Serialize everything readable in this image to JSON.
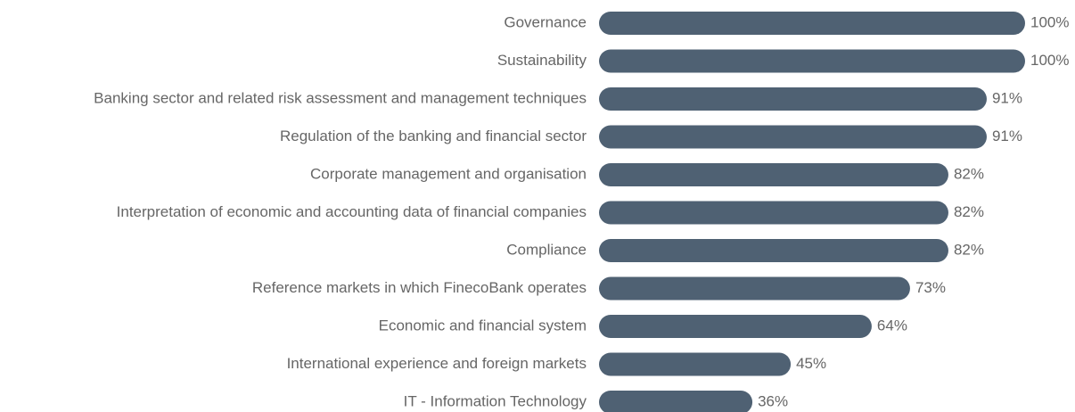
{
  "chart_data": {
    "type": "bar",
    "orientation": "horizontal",
    "categories": [
      "Governance",
      "Sustainability",
      "Banking sector and related risk assessment and management techniques",
      "Regulation of the banking and financial sector",
      "Corporate management and organisation",
      "Interpretation of economic and accounting data of financial companies",
      "Compliance",
      "Reference markets in which FinecoBank operates",
      "Economic and financial system",
      "International experience and foreign markets",
      "IT - Information Technology"
    ],
    "values": [
      100,
      100,
      91,
      91,
      82,
      82,
      82,
      73,
      64,
      45,
      36
    ],
    "value_labels": [
      "100%",
      "100%",
      "91%",
      "91%",
      "82%",
      "82%",
      "82%",
      "73%",
      "64%",
      "45%",
      "36%"
    ],
    "color": "#4f6173"
  }
}
